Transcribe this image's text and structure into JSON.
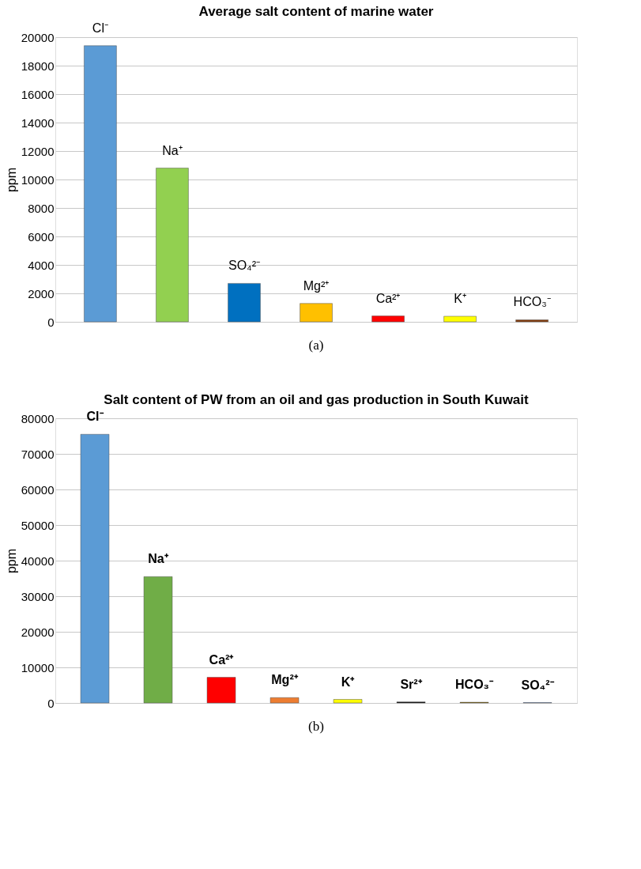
{
  "chart_data": [
    {
      "type": "bar",
      "title": "Average salt content of marine water",
      "ylabel": "ppm",
      "categories": [
        "Cl⁻",
        "Na⁺",
        "SO₄²⁻",
        "Mg²⁺",
        "Ca²⁺",
        "K⁺",
        "HCO₃⁻"
      ],
      "values": [
        19400,
        10800,
        2700,
        1290,
        410,
        390,
        140
      ],
      "colors": [
        "#5b9bd5",
        "#92d050",
        "#0070c0",
        "#ffc000",
        "#ff0000",
        "#ffff00",
        "#843c0c"
      ],
      "ylim": [
        0,
        20000
      ],
      "yticks": [
        0,
        2000,
        4000,
        6000,
        8000,
        10000,
        12000,
        14000,
        16000,
        18000,
        20000
      ],
      "grid": "y",
      "tick_labels": "y",
      "annotations": [
        "(a)"
      ]
    },
    {
      "type": "bar",
      "title": "Salt content of PW from an oil and gas production in South Kuwait",
      "ylabel": "ppm",
      "categories": [
        "Cl⁻",
        "Na⁺",
        "Ca²⁺",
        "Mg²⁺",
        "K⁺",
        "Sr²⁺",
        "HCO₃⁻",
        "SO₄²⁻"
      ],
      "values": [
        75500,
        35500,
        7200,
        1500,
        1000,
        300,
        200,
        100
      ],
      "colors": [
        "#5b9bd5",
        "#70ad47",
        "#ff0000",
        "#ed7d31",
        "#ffff00",
        "#000000",
        "#7f6000",
        "#4472c4"
      ],
      "ylim": [
        0,
        80000
      ],
      "yticks": [
        0,
        10000,
        20000,
        30000,
        40000,
        50000,
        60000,
        70000,
        80000
      ],
      "grid": "y",
      "tick_labels": "y",
      "annotations": [
        "(b)"
      ]
    }
  ]
}
